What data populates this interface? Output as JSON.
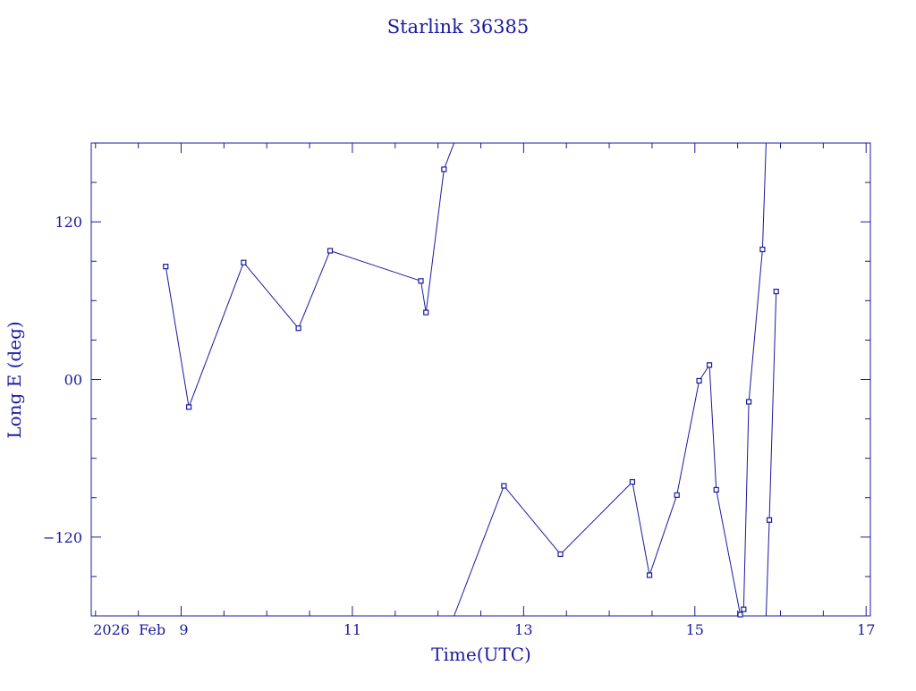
{
  "chart_data": {
    "type": "line",
    "title": "Starlink 36385",
    "xlabel": "Time(UTC)",
    "ylabel": "Long E (deg)",
    "x_unit": "days (Feb 2026)",
    "xlim": [
      7.95,
      17.05
    ],
    "ylim": [
      -180,
      180
    ],
    "x_ticks": [
      {
        "value": 9,
        "label": "2026  Feb   9"
      },
      {
        "value": 11,
        "label": "11"
      },
      {
        "value": 13,
        "label": "13"
      },
      {
        "value": 15,
        "label": "15"
      },
      {
        "value": 17,
        "label": "17"
      }
    ],
    "y_ticks": [
      {
        "value": 120,
        "label": "120"
      },
      {
        "value": 0,
        "label": "00"
      },
      {
        "value": -120,
        "label": "−120"
      }
    ],
    "x_minor_step": 0.5,
    "y_minor_step": 30,
    "grid": false,
    "color": "#1a1aa0",
    "series": [
      {
        "x": [
          8.82,
          9.09,
          9.73,
          10.37,
          10.74,
          11.8,
          11.86,
          12.07,
          12.77,
          13.43,
          14.27,
          14.47,
          14.79,
          15.05,
          15.17,
          15.25,
          15.53,
          15.57,
          15.63,
          15.79,
          15.87,
          15.95
        ],
        "y": [
          86,
          -21,
          89,
          39,
          98,
          75,
          51,
          160,
          -81,
          -133,
          -78,
          -149,
          -88,
          -1,
          11,
          -84,
          -179,
          -175,
          -17,
          99,
          -107,
          67
        ]
      }
    ]
  }
}
